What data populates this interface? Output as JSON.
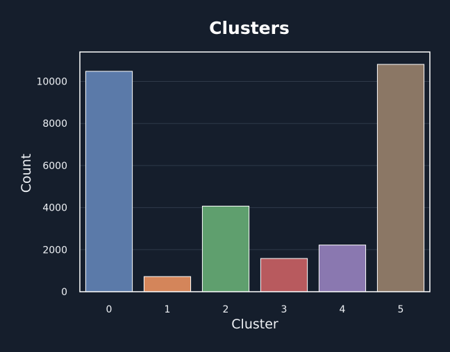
{
  "chart_data": {
    "type": "bar",
    "title": "Clusters",
    "xlabel": "Cluster",
    "ylabel": "Count",
    "categories": [
      "0",
      "1",
      "2",
      "3",
      "4",
      "5"
    ],
    "values": [
      10480,
      720,
      4070,
      1580,
      2220,
      10810
    ],
    "ylim": [
      0,
      11400
    ],
    "yticks": [
      0,
      2000,
      4000,
      6000,
      8000,
      10000
    ],
    "grid": true,
    "colors": [
      "#5b7aa9",
      "#d4855a",
      "#5f9f6e",
      "#b85a5e",
      "#8a78b0",
      "#8b7765"
    ],
    "background": "#151e2c"
  }
}
